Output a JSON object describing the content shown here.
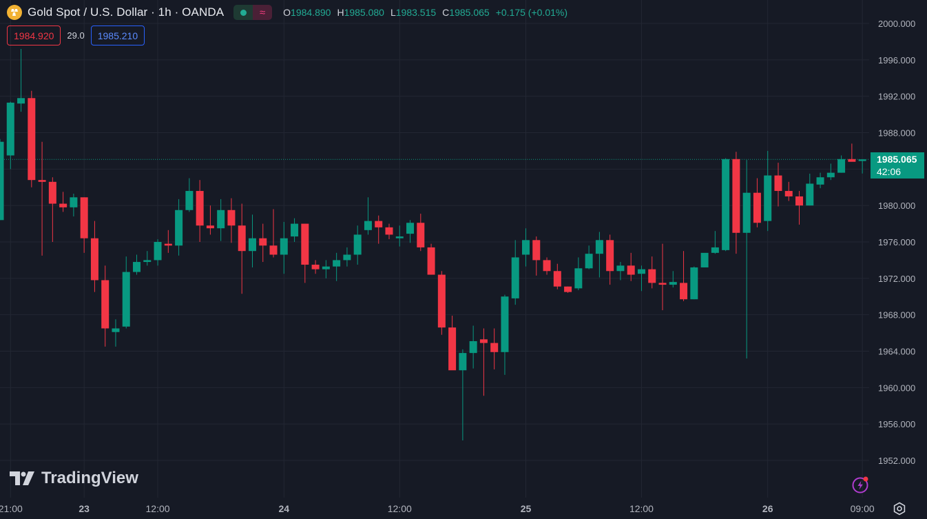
{
  "header": {
    "symbol_title": "Gold Spot / U.S. Dollar · 1h · OANDA",
    "ohlc": {
      "o_label": "O",
      "o_value": "1984.890",
      "h_label": "H",
      "h_value": "1985.080",
      "l_label": "L",
      "l_value": "1983.515",
      "c_label": "C",
      "c_value": "1985.065",
      "change": "+0.175 (+0.01%)"
    }
  },
  "quote": {
    "sell": "1984.920",
    "spread": "29.0",
    "buy": "1985.210"
  },
  "last_price": {
    "price": "1985.065",
    "countdown": "42:06"
  },
  "branding": {
    "name": "TradingView"
  },
  "colors": {
    "up": "#089981",
    "down": "#f23645",
    "background": "#161a25",
    "grid": "#232733"
  },
  "chart_data": {
    "type": "candlestick",
    "ylim": [
      1949.5,
      2002
    ],
    "y_ticks": [
      "2000.000",
      "1996.000",
      "1992.000",
      "1988.000",
      "1984.000",
      "1980.000",
      "1976.000",
      "1972.000",
      "1968.000",
      "1964.000",
      "1960.000",
      "1956.000",
      "1952.000"
    ],
    "x_ticks": [
      {
        "label": "21:00",
        "index": 1
      },
      {
        "label": "23",
        "index": 8
      },
      {
        "label": "12:00",
        "index": 15
      },
      {
        "label": "24",
        "index": 27
      },
      {
        "label": "12:00",
        "index": 38
      },
      {
        "label": "25",
        "index": 50
      },
      {
        "label": "12:00",
        "index": 61
      },
      {
        "label": "26",
        "index": 73
      },
      {
        "label": "09:00",
        "index": 82
      }
    ],
    "last_price": 1985.065,
    "candles": [
      {
        "o": 1978.4,
        "h": 1987.3,
        "l": 1978.4,
        "c": 1987.0
      },
      {
        "o": 1985.5,
        "h": 1991.4,
        "l": 1984.0,
        "c": 1991.3
      },
      {
        "o": 1991.2,
        "h": 1997.2,
        "l": 1990.3,
        "c": 1991.8
      },
      {
        "o": 1991.8,
        "h": 1992.6,
        "l": 1982.0,
        "c": 1982.8
      },
      {
        "o": 1982.8,
        "h": 1987.0,
        "l": 1974.5,
        "c": 1982.6
      },
      {
        "o": 1982.6,
        "h": 1983.1,
        "l": 1976.0,
        "c": 1980.2
      },
      {
        "o": 1980.2,
        "h": 1981.5,
        "l": 1979.3,
        "c": 1979.8
      },
      {
        "o": 1979.8,
        "h": 1981.3,
        "l": 1978.8,
        "c": 1980.9
      },
      {
        "o": 1980.9,
        "h": 1980.9,
        "l": 1974.8,
        "c": 1976.4
      },
      {
        "o": 1976.4,
        "h": 1978.3,
        "l": 1970.5,
        "c": 1971.8
      },
      {
        "o": 1971.8,
        "h": 1973.4,
        "l": 1964.5,
        "c": 1966.5
      },
      {
        "o": 1966.1,
        "h": 1967.5,
        "l": 1964.5,
        "c": 1966.5
      },
      {
        "o": 1966.7,
        "h": 1974.4,
        "l": 1966.5,
        "c": 1972.7
      },
      {
        "o": 1972.7,
        "h": 1974.6,
        "l": 1972.4,
        "c": 1973.8
      },
      {
        "o": 1973.8,
        "h": 1975.0,
        "l": 1973.4,
        "c": 1974.0
      },
      {
        "o": 1974.0,
        "h": 1976.3,
        "l": 1973.4,
        "c": 1976.0
      },
      {
        "o": 1975.8,
        "h": 1977.3,
        "l": 1974.8,
        "c": 1975.6
      },
      {
        "o": 1975.6,
        "h": 1980.7,
        "l": 1974.5,
        "c": 1979.5
      },
      {
        "o": 1979.5,
        "h": 1983.0,
        "l": 1979.3,
        "c": 1981.6
      },
      {
        "o": 1981.6,
        "h": 1982.8,
        "l": 1976.0,
        "c": 1977.8
      },
      {
        "o": 1977.8,
        "h": 1980.0,
        "l": 1976.8,
        "c": 1977.5
      },
      {
        "o": 1977.5,
        "h": 1980.7,
        "l": 1976.1,
        "c": 1979.5
      },
      {
        "o": 1979.5,
        "h": 1980.8,
        "l": 1975.9,
        "c": 1977.8
      },
      {
        "o": 1977.8,
        "h": 1980.2,
        "l": 1970.3,
        "c": 1975.0
      },
      {
        "o": 1975.0,
        "h": 1979.0,
        "l": 1973.2,
        "c": 1976.4
      },
      {
        "o": 1976.4,
        "h": 1978.0,
        "l": 1973.8,
        "c": 1975.6
      },
      {
        "o": 1975.6,
        "h": 1979.6,
        "l": 1974.3,
        "c": 1974.6
      },
      {
        "o": 1974.6,
        "h": 1978.2,
        "l": 1972.5,
        "c": 1976.4
      },
      {
        "o": 1976.6,
        "h": 1978.6,
        "l": 1976.0,
        "c": 1978.0
      },
      {
        "o": 1978.0,
        "h": 1978.0,
        "l": 1971.5,
        "c": 1973.5
      },
      {
        "o": 1973.5,
        "h": 1974.0,
        "l": 1972.5,
        "c": 1973.0
      },
      {
        "o": 1973.0,
        "h": 1974.0,
        "l": 1972.0,
        "c": 1973.3
      },
      {
        "o": 1973.3,
        "h": 1974.8,
        "l": 1971.7,
        "c": 1974.0
      },
      {
        "o": 1974.0,
        "h": 1975.4,
        "l": 1973.3,
        "c": 1974.6
      },
      {
        "o": 1974.6,
        "h": 1977.8,
        "l": 1973.5,
        "c": 1976.8
      },
      {
        "o": 1977.3,
        "h": 1980.9,
        "l": 1976.8,
        "c": 1978.3
      },
      {
        "o": 1978.3,
        "h": 1978.9,
        "l": 1975.8,
        "c": 1977.6
      },
      {
        "o": 1977.6,
        "h": 1978.0,
        "l": 1976.3,
        "c": 1976.8
      },
      {
        "o": 1976.4,
        "h": 1977.8,
        "l": 1975.5,
        "c": 1976.6
      },
      {
        "o": 1976.9,
        "h": 1978.4,
        "l": 1975.9,
        "c": 1978.1
      },
      {
        "o": 1978.1,
        "h": 1979.1,
        "l": 1975.0,
        "c": 1975.4
      },
      {
        "o": 1975.4,
        "h": 1975.8,
        "l": 1972.4,
        "c": 1972.4
      },
      {
        "o": 1972.4,
        "h": 1972.8,
        "l": 1965.8,
        "c": 1966.6
      },
      {
        "o": 1966.6,
        "h": 1967.9,
        "l": 1962.0,
        "c": 1961.9
      },
      {
        "o": 1961.9,
        "h": 1964.2,
        "l": 1954.2,
        "c": 1963.8
      },
      {
        "o": 1963.8,
        "h": 1966.8,
        "l": 1962.1,
        "c": 1965.1
      },
      {
        "o": 1965.3,
        "h": 1966.5,
        "l": 1959.1,
        "c": 1964.9
      },
      {
        "o": 1964.9,
        "h": 1966.5,
        "l": 1962.0,
        "c": 1963.9
      },
      {
        "o": 1963.9,
        "h": 1970.2,
        "l": 1961.4,
        "c": 1970.0
      },
      {
        "o": 1969.8,
        "h": 1976.2,
        "l": 1969.1,
        "c": 1974.3
      },
      {
        "o": 1974.6,
        "h": 1977.5,
        "l": 1973.3,
        "c": 1976.2
      },
      {
        "o": 1976.2,
        "h": 1976.6,
        "l": 1972.3,
        "c": 1974.0
      },
      {
        "o": 1974.0,
        "h": 1974.3,
        "l": 1972.4,
        "c": 1972.8
      },
      {
        "o": 1972.8,
        "h": 1973.6,
        "l": 1970.8,
        "c": 1971.1
      },
      {
        "o": 1971.1,
        "h": 1971.1,
        "l": 1970.4,
        "c": 1970.5
      },
      {
        "o": 1970.9,
        "h": 1974.3,
        "l": 1970.7,
        "c": 1973.1
      },
      {
        "o": 1973.1,
        "h": 1975.6,
        "l": 1973.0,
        "c": 1974.7
      },
      {
        "o": 1974.7,
        "h": 1977.1,
        "l": 1972.1,
        "c": 1976.2
      },
      {
        "o": 1976.2,
        "h": 1976.8,
        "l": 1971.3,
        "c": 1972.8
      },
      {
        "o": 1972.8,
        "h": 1973.8,
        "l": 1971.8,
        "c": 1973.4
      },
      {
        "o": 1973.4,
        "h": 1974.8,
        "l": 1971.7,
        "c": 1972.4
      },
      {
        "o": 1972.5,
        "h": 1973.4,
        "l": 1970.6,
        "c": 1973.0
      },
      {
        "o": 1973.0,
        "h": 1974.4,
        "l": 1970.9,
        "c": 1971.5
      },
      {
        "o": 1971.5,
        "h": 1975.8,
        "l": 1968.5,
        "c": 1971.3
      },
      {
        "o": 1971.3,
        "h": 1972.8,
        "l": 1971.0,
        "c": 1971.6
      },
      {
        "o": 1971.5,
        "h": 1975.0,
        "l": 1969.5,
        "c": 1969.7
      },
      {
        "o": 1969.7,
        "h": 1973.3,
        "l": 1969.7,
        "c": 1973.2
      },
      {
        "o": 1973.2,
        "h": 1974.7,
        "l": 1973.2,
        "c": 1974.8
      },
      {
        "o": 1974.8,
        "h": 1977.2,
        "l": 1974.7,
        "c": 1975.4
      },
      {
        "o": 1975.1,
        "h": 1985.2,
        "l": 1975.0,
        "c": 1985.1
      },
      {
        "o": 1985.1,
        "h": 1985.9,
        "l": 1974.7,
        "c": 1977.0
      },
      {
        "o": 1977.0,
        "h": 1985.0,
        "l": 1963.2,
        "c": 1981.4
      },
      {
        "o": 1981.4,
        "h": 1983.0,
        "l": 1977.6,
        "c": 1978.1
      },
      {
        "o": 1978.3,
        "h": 1986.0,
        "l": 1977.2,
        "c": 1983.3
      },
      {
        "o": 1983.3,
        "h": 1984.7,
        "l": 1979.9,
        "c": 1981.6
      },
      {
        "o": 1981.6,
        "h": 1982.6,
        "l": 1980.5,
        "c": 1981.0
      },
      {
        "o": 1981.0,
        "h": 1981.6,
        "l": 1977.9,
        "c": 1980.0
      },
      {
        "o": 1980.0,
        "h": 1983.5,
        "l": 1980.0,
        "c": 1982.4
      },
      {
        "o": 1982.3,
        "h": 1983.6,
        "l": 1981.9,
        "c": 1983.1
      },
      {
        "o": 1983.1,
        "h": 1984.6,
        "l": 1982.8,
        "c": 1983.6
      },
      {
        "o": 1983.6,
        "h": 1985.5,
        "l": 1983.6,
        "c": 1985.1
      },
      {
        "o": 1985.1,
        "h": 1986.8,
        "l": 1984.9,
        "c": 1984.8
      },
      {
        "o": 1984.89,
        "h": 1985.08,
        "l": 1983.515,
        "c": 1985.065
      }
    ]
  }
}
